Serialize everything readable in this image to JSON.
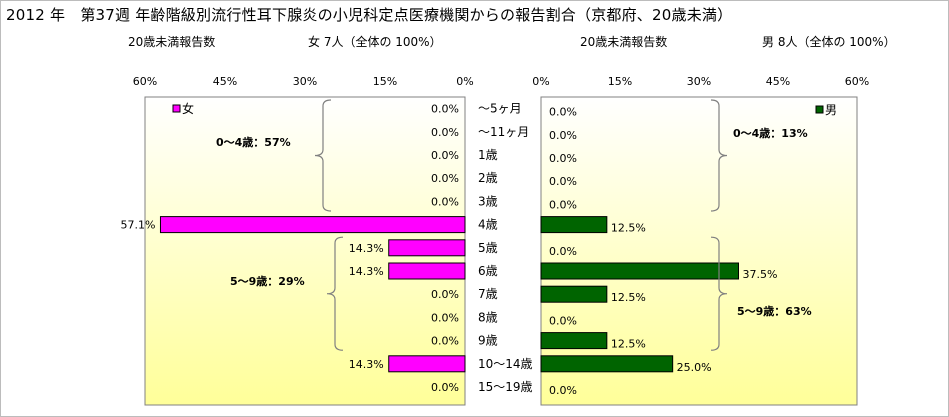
{
  "title": "2012 年　第37週 年齢階級別流行性耳下腺炎の小児科定点医療機関からの報告割合（京都府、20歳未満）",
  "female_header": {
    "label": "20歳未満報告数",
    "count": "女  7人（全体の  100%）"
  },
  "male_header": {
    "label": "20歳未満報告数",
    "count": "男  8人（全体の  100%）"
  },
  "colors": {
    "female": "#ff00ff",
    "male": "#006400",
    "plot_bg_top": "#ffffff",
    "plot_bg_bottom": "#ffff99"
  },
  "chart_data": [
    {
      "type": "bar",
      "orientation": "horizontal",
      "direction": "right-to-left",
      "legend": "女",
      "legend_position": "top-left",
      "categories": [
        "～5ヶ月",
        "～11ヶ月",
        "1歳",
        "2歳",
        "3歳",
        "4歳",
        "5歳",
        "6歳",
        "7歳",
        "8歳",
        "9歳",
        "10～14歳",
        "15～19歳"
      ],
      "values": [
        0.0,
        0.0,
        0.0,
        0.0,
        0.0,
        57.1,
        14.3,
        14.3,
        0.0,
        0.0,
        0.0,
        14.3,
        0.0
      ],
      "labels": [
        "0.0%",
        "0.0%",
        "0.0%",
        "0.0%",
        "0.0%",
        "57.1%",
        "14.3%",
        "14.3%",
        "0.0%",
        "0.0%",
        "0.0%",
        "14.3%",
        "0.0%"
      ],
      "xlim": [
        0,
        60
      ],
      "ticks": [
        "60%",
        "45%",
        "30%",
        "15%",
        "0%"
      ],
      "annotations": [
        "0～4歳：57%",
        "5～9歳：29%"
      ]
    },
    {
      "type": "bar",
      "orientation": "horizontal",
      "direction": "left-to-right",
      "legend": "男",
      "legend_position": "top-right",
      "categories": [
        "～5ヶ月",
        "～11ヶ月",
        "1歳",
        "2歳",
        "3歳",
        "4歳",
        "5歳",
        "6歳",
        "7歳",
        "8歳",
        "9歳",
        "10～14歳",
        "15～19歳"
      ],
      "values": [
        0.0,
        0.0,
        0.0,
        0.0,
        0.0,
        12.5,
        0.0,
        37.5,
        12.5,
        0.0,
        12.5,
        25.0,
        0.0
      ],
      "labels": [
        "0.0%",
        "0.0%",
        "0.0%",
        "0.0%",
        "0.0%",
        "12.5%",
        "0.0%",
        "37.5%",
        "12.5%",
        "0.0%",
        "12.5%",
        "25.0%",
        "0.0%"
      ],
      "xlim": [
        0,
        60
      ],
      "ticks": [
        "0%",
        "15%",
        "30%",
        "45%",
        "60%"
      ],
      "annotations": [
        "0～4歳：13%",
        "5～9歳：63%"
      ]
    }
  ]
}
